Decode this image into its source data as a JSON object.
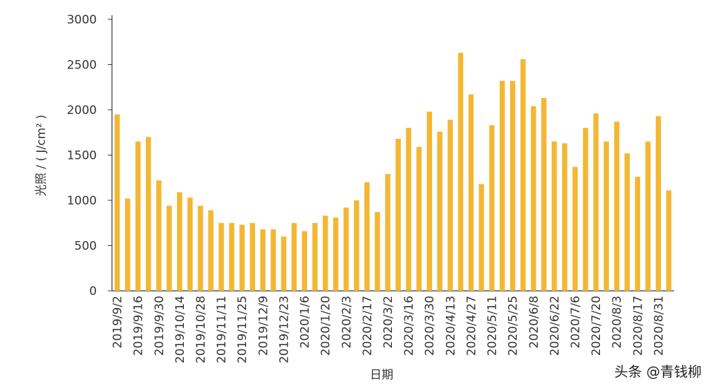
{
  "chart_data": {
    "type": "bar",
    "ylabel": "光照 / ( J/cm² )",
    "xlabel": "日期",
    "watermark": "头条 @青钱柳",
    "categories": [
      "2019/9/2",
      null,
      "2019/9/16",
      null,
      "2019/9/30",
      null,
      "2019/10/14",
      null,
      "2019/10/28",
      null,
      "2019/11/11",
      null,
      "2019/11/25",
      null,
      "2019/12/9",
      null,
      "2019/12/23",
      null,
      "2020/1/6",
      null,
      "2020/1/20",
      null,
      "2020/2/3",
      null,
      "2020/2/17",
      null,
      "2020/3/2",
      null,
      "2020/3/16",
      null,
      "2020/3/30",
      null,
      "2020/4/13",
      null,
      "2020/4/27",
      null,
      "2020/5/11",
      null,
      "2020/5/25",
      null,
      "2020/6/8",
      null,
      "2020/6/22",
      null,
      "2020/7/6",
      null,
      "2020/7/20",
      null,
      "2020/8/3",
      null,
      "2020/8/17",
      null,
      "2020/8/31",
      null
    ],
    "values": [
      1950,
      1020,
      1650,
      1700,
      1220,
      940,
      1090,
      1030,
      940,
      890,
      750,
      750,
      730,
      750,
      680,
      680,
      600,
      750,
      660,
      750,
      830,
      810,
      920,
      1000,
      1200,
      870,
      1290,
      1680,
      1800,
      1590,
      1980,
      1760,
      1890,
      2630,
      2170,
      1180,
      1830,
      2320,
      2320,
      2560,
      2040,
      2130,
      1650,
      1630,
      1370,
      1800,
      1960,
      1650,
      1870,
      1520,
      1260,
      1650,
      1930,
      1110
    ],
    "color": "#f3b733",
    "ylim": [
      0,
      3000
    ],
    "yticks": [
      0,
      500,
      1000,
      1500,
      2000,
      2500,
      3000
    ]
  }
}
